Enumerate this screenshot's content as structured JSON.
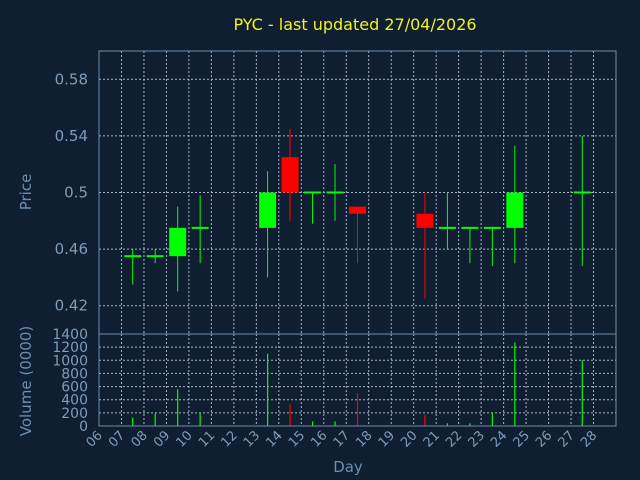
{
  "colors": {
    "background": "#0f1e30",
    "title": "#f2f21c",
    "axis_text": "#7f9cba",
    "grid": "#a9b6c6",
    "up": "#00ff00",
    "down": "#ff0000"
  },
  "chart_data": {
    "type": "candlestick",
    "title": "PYC - last updated 27/04/2026",
    "xlabel": "Day",
    "price_panel": {
      "ylabel": "Price",
      "ylim": [
        0.4,
        0.6
      ],
      "y_ticks": [
        "0.58",
        "0.54",
        "0.5",
        "0.46",
        "0.42"
      ],
      "grid": true
    },
    "volume_panel": {
      "ylabel": "Volume (0000)",
      "ylim": [
        0,
        1400
      ],
      "y_ticks": [
        "1400",
        "1200",
        "1000",
        "800",
        "600",
        "400",
        "200",
        "0"
      ],
      "grid": true
    },
    "x_ticks": [
      "06",
      "07",
      "08",
      "09",
      "10",
      "11",
      "12",
      "13",
      "14",
      "15",
      "16",
      "17",
      "18",
      "19",
      "20",
      "21",
      "22",
      "23",
      "24",
      "25",
      "26",
      "27",
      "28"
    ],
    "candles": [
      {
        "day": "07",
        "open": 0.455,
        "high": 0.46,
        "low": 0.435,
        "close": 0.455
      },
      {
        "day": "08",
        "open": 0.455,
        "high": 0.46,
        "low": 0.45,
        "close": 0.455
      },
      {
        "day": "09",
        "open": 0.455,
        "high": 0.49,
        "low": 0.43,
        "close": 0.475
      },
      {
        "day": "10",
        "open": 0.475,
        "high": 0.498,
        "low": 0.45,
        "close": 0.475
      },
      {
        "day": "13",
        "open": 0.475,
        "high": 0.515,
        "low": 0.44,
        "close": 0.5
      },
      {
        "day": "14",
        "open": 0.525,
        "high": 0.545,
        "low": 0.48,
        "close": 0.5
      },
      {
        "day": "15",
        "open": 0.5,
        "high": 0.5,
        "low": 0.478,
        "close": 0.5
      },
      {
        "day": "16",
        "open": 0.5,
        "high": 0.52,
        "low": 0.48,
        "close": 0.5
      },
      {
        "day": "17",
        "open": 0.49,
        "high": 0.49,
        "low": 0.45,
        "close": 0.485
      },
      {
        "day": "20",
        "open": 0.485,
        "high": 0.5,
        "low": 0.425,
        "close": 0.475
      },
      {
        "day": "21",
        "open": 0.475,
        "high": 0.5,
        "low": 0.46,
        "close": 0.475
      },
      {
        "day": "22",
        "open": 0.475,
        "high": 0.475,
        "low": 0.45,
        "close": 0.475
      },
      {
        "day": "23",
        "open": 0.475,
        "high": 0.475,
        "low": 0.448,
        "close": 0.475
      },
      {
        "day": "24",
        "open": 0.475,
        "high": 0.533,
        "low": 0.45,
        "close": 0.5
      },
      {
        "day": "27",
        "open": 0.5,
        "high": 0.54,
        "low": 0.448,
        "close": 0.5
      }
    ],
    "volumes": [
      {
        "day": "07",
        "value": 130,
        "direction": "up"
      },
      {
        "day": "08",
        "value": 190,
        "direction": "up"
      },
      {
        "day": "09",
        "value": 560,
        "direction": "up"
      },
      {
        "day": "10",
        "value": 200,
        "direction": "up"
      },
      {
        "day": "13",
        "value": 1100,
        "direction": "up"
      },
      {
        "day": "14",
        "value": 330,
        "direction": "down"
      },
      {
        "day": "15",
        "value": 70,
        "direction": "up"
      },
      {
        "day": "16",
        "value": 70,
        "direction": "up"
      },
      {
        "day": "17",
        "value": 500,
        "direction": "down"
      },
      {
        "day": "20",
        "value": 170,
        "direction": "down"
      },
      {
        "day": "21",
        "value": 40,
        "direction": "up"
      },
      {
        "day": "22",
        "value": 40,
        "direction": "up"
      },
      {
        "day": "23",
        "value": 200,
        "direction": "up"
      },
      {
        "day": "24",
        "value": 1270,
        "direction": "up"
      },
      {
        "day": "27",
        "value": 1000,
        "direction": "up"
      }
    ]
  }
}
